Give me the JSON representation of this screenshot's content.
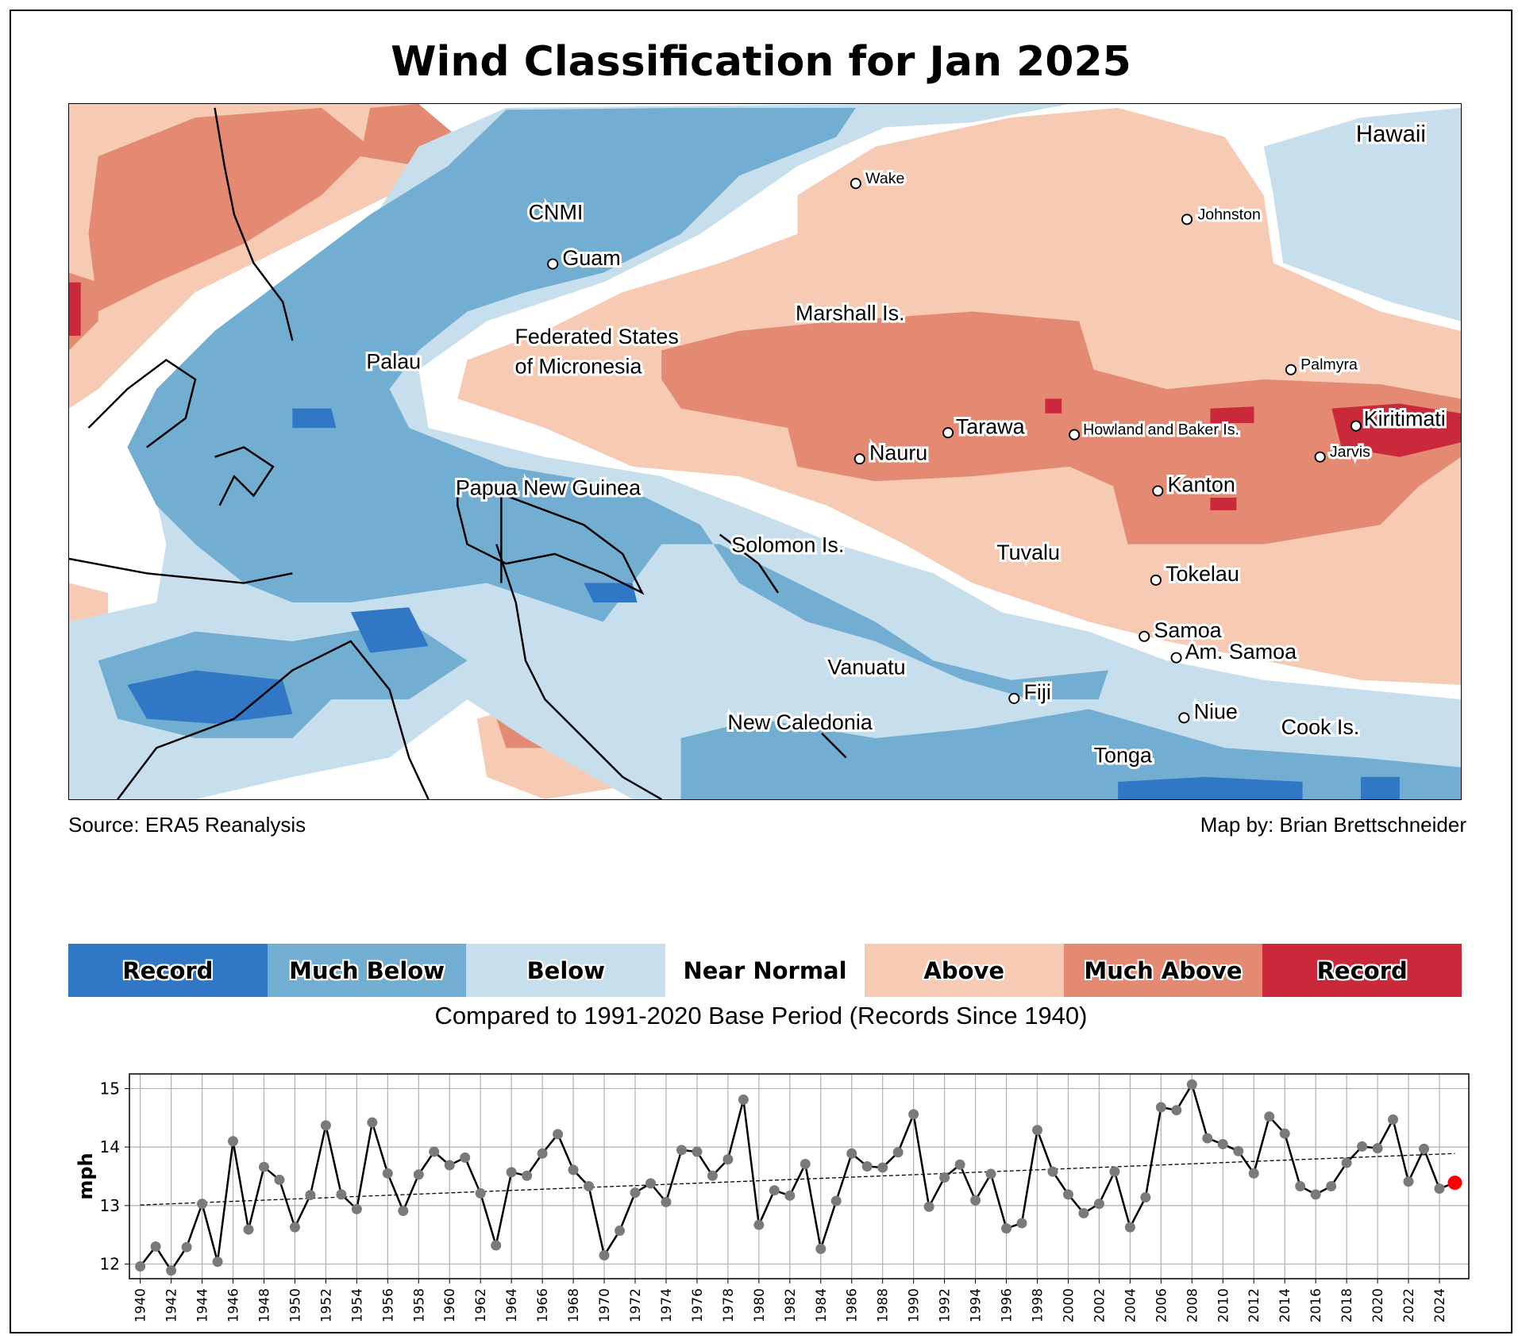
{
  "title": "Wind Classification for Jan 2025",
  "source": "Source: ERA5 Reanalysis",
  "credit": "Map by: Brian Brettschneider",
  "legend": {
    "items": [
      {
        "label": "Record",
        "color": "#3077c6"
      },
      {
        "label": "Much Below",
        "color": "#72aed2"
      },
      {
        "label": "Below",
        "color": "#c7dfec"
      },
      {
        "label": "Near Normal",
        "color": "#ffffff"
      },
      {
        "label": "Above",
        "color": "#f7cab4"
      },
      {
        "label": "Much Above",
        "color": "#e48a73"
      },
      {
        "label": "Record",
        "color": "#c9293a"
      }
    ],
    "base_period": "Compared to 1991-2020 Base Period   (Records Since 1940)"
  },
  "map_labels": {
    "hawaii": "Hawaii",
    "wake": "Wake",
    "johnston": "Johnston",
    "cnmi": "CNMI",
    "guam": "Guam",
    "marshall": "Marshall Is.",
    "palau": "Palau",
    "fsm1": "Federated States",
    "fsm2": "of Micronesia",
    "palmyra": "Palmyra",
    "kiritimati": "Kiritimati",
    "tarawa": "Tarawa",
    "howland": "Howland and Baker Is.",
    "nauru": "Nauru",
    "jarvis": "Jarvis",
    "kanton": "Kanton",
    "png": "Papua New Guinea",
    "solomon": "Solomon Is.",
    "tuvalu": "Tuvalu",
    "tokelau": "Tokelau",
    "samoa": "Samoa",
    "amsamoa": "Am. Samoa",
    "vanuatu": "Vanuatu",
    "fiji": "Fiji",
    "niue": "Niue",
    "cook": "Cook Is.",
    "newcal": "New Caledonia",
    "tonga": "Tonga"
  },
  "chart_data": {
    "type": "line",
    "title": "",
    "xlabel": "",
    "ylabel": "mph",
    "ylim": [
      11.75,
      15.25
    ],
    "yticks": [
      12,
      13,
      14,
      15
    ],
    "xlim": [
      1939.3,
      2025.9
    ],
    "grid": true,
    "highlight_color": "#ff0000",
    "trend": {
      "x": [
        1940,
        2025
      ],
      "y": [
        13.01,
        13.89
      ]
    },
    "x": [
      1940,
      1941,
      1942,
      1943,
      1944,
      1945,
      1946,
      1947,
      1948,
      1949,
      1950,
      1951,
      1952,
      1953,
      1954,
      1955,
      1956,
      1957,
      1958,
      1959,
      1960,
      1961,
      1962,
      1963,
      1964,
      1965,
      1966,
      1967,
      1968,
      1969,
      1970,
      1971,
      1972,
      1973,
      1974,
      1975,
      1976,
      1977,
      1978,
      1979,
      1980,
      1981,
      1982,
      1983,
      1984,
      1985,
      1986,
      1987,
      1988,
      1989,
      1990,
      1991,
      1992,
      1993,
      1994,
      1995,
      1996,
      1997,
      1998,
      1999,
      2000,
      2001,
      2002,
      2003,
      2004,
      2005,
      2006,
      2007,
      2008,
      2009,
      2010,
      2011,
      2012,
      2013,
      2014,
      2015,
      2016,
      2017,
      2018,
      2019,
      2020,
      2021,
      2022,
      2023,
      2024,
      2025
    ],
    "y": [
      11.96,
      12.3,
      11.89,
      12.29,
      13.03,
      12.04,
      14.1,
      12.59,
      13.66,
      13.44,
      12.63,
      13.18,
      14.37,
      13.19,
      12.94,
      14.42,
      13.55,
      12.91,
      13.53,
      13.92,
      13.69,
      13.82,
      13.21,
      12.32,
      13.57,
      13.51,
      13.89,
      14.22,
      13.61,
      13.33,
      12.15,
      12.57,
      13.22,
      13.38,
      13.06,
      13.95,
      13.92,
      13.51,
      13.79,
      14.81,
      12.67,
      13.26,
      13.17,
      13.71,
      12.26,
      13.08,
      13.89,
      13.67,
      13.65,
      13.91,
      14.56,
      12.98,
      13.48,
      13.7,
      13.09,
      13.54,
      12.61,
      12.7,
      14.29,
      13.58,
      13.19,
      12.87,
      13.03,
      13.58,
      12.63,
      13.14,
      14.68,
      14.63,
      15.07,
      14.15,
      14.05,
      13.93,
      13.55,
      14.52,
      14.23,
      13.33,
      13.19,
      13.33,
      13.73,
      14.01,
      13.98,
      14.47,
      13.41,
      13.97,
      13.29,
      13.39
    ],
    "xtick_labels": [
      "1940",
      "1942",
      "1944",
      "1946",
      "1948",
      "1950",
      "1952",
      "1954",
      "1956",
      "1958",
      "1960",
      "1962",
      "1964",
      "1966",
      "1968",
      "1970",
      "1972",
      "1974",
      "1976",
      "1978",
      "1980",
      "1982",
      "1984",
      "1986",
      "1988",
      "1990",
      "1992",
      "1994",
      "1996",
      "1998",
      "2000",
      "2002",
      "2004",
      "2006",
      "2008",
      "2010",
      "2012",
      "2014",
      "2016",
      "2018",
      "2020",
      "2022",
      "2024"
    ]
  }
}
